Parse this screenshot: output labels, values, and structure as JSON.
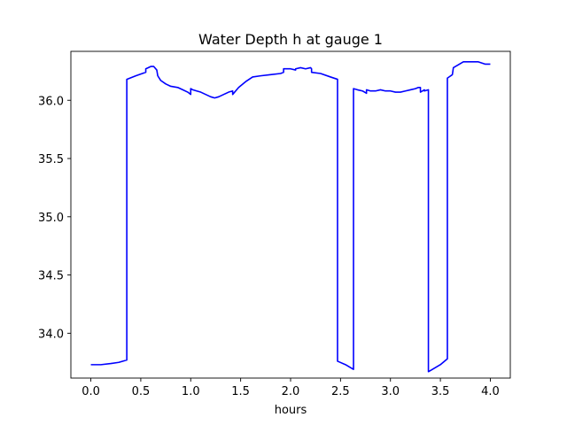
{
  "chart_data": {
    "type": "line",
    "title": "Water Depth h at gauge 1",
    "xlabel": "hours",
    "ylabel": "",
    "xlim": [
      -0.2,
      4.2
    ],
    "ylim": [
      33.615,
      36.42
    ],
    "xticks": [
      0.0,
      0.5,
      1.0,
      1.5,
      2.0,
      2.5,
      3.0,
      3.5,
      4.0
    ],
    "xtick_labels": [
      "0.0",
      "0.5",
      "1.0",
      "1.5",
      "2.0",
      "2.5",
      "3.0",
      "3.5",
      "4.0"
    ],
    "yticks": [
      34.0,
      34.5,
      35.0,
      35.5,
      36.0
    ],
    "ytick_labels": [
      "34.0",
      "34.5",
      "35.0",
      "35.5",
      "36.0"
    ],
    "grid": false,
    "line_color": "#0000ff",
    "series": [
      {
        "x": [
          0.0,
          0.1,
          0.2,
          0.28,
          0.36,
          0.36,
          0.45,
          0.55,
          0.55,
          0.6,
          0.63,
          0.66,
          0.67,
          0.7,
          0.75,
          0.8,
          0.87,
          0.92,
          0.97,
          1.0,
          1.0,
          1.02,
          1.06,
          1.1,
          1.15,
          1.2,
          1.24,
          1.28,
          1.33,
          1.38,
          1.42,
          1.42,
          1.48,
          1.55,
          1.62,
          1.7,
          1.8,
          1.9,
          1.93,
          1.93,
          2.0,
          2.05,
          2.05,
          2.1,
          2.15,
          2.2,
          2.21,
          2.21,
          2.3,
          2.4,
          2.47,
          2.47,
          2.55,
          2.63,
          2.63,
          2.67,
          2.72,
          2.76,
          2.76,
          2.8,
          2.85,
          2.9,
          2.95,
          3.0,
          3.05,
          3.1,
          3.15,
          3.2,
          3.25,
          3.28,
          3.3,
          3.3,
          3.34,
          3.34,
          3.38,
          3.38,
          3.42,
          3.5,
          3.57,
          3.57,
          3.62,
          3.63,
          3.67,
          3.73,
          3.8,
          3.88,
          3.95,
          4.0
        ],
        "y": [
          33.73,
          33.73,
          33.74,
          33.75,
          33.77,
          36.18,
          36.21,
          36.24,
          36.27,
          36.29,
          36.29,
          36.26,
          36.21,
          36.17,
          36.14,
          36.12,
          36.11,
          36.09,
          36.07,
          36.05,
          36.1,
          36.09,
          36.08,
          36.07,
          36.05,
          36.03,
          36.02,
          36.03,
          36.05,
          36.07,
          36.08,
          36.05,
          36.11,
          36.16,
          36.2,
          36.21,
          36.22,
          36.23,
          36.24,
          36.27,
          36.27,
          36.26,
          36.27,
          36.28,
          36.27,
          36.28,
          36.27,
          36.24,
          36.23,
          36.2,
          36.18,
          33.76,
          33.73,
          33.69,
          36.1,
          36.09,
          36.08,
          36.06,
          36.09,
          36.08,
          36.08,
          36.09,
          36.08,
          36.08,
          36.07,
          36.07,
          36.08,
          36.09,
          36.1,
          36.11,
          36.11,
          36.07,
          36.09,
          36.08,
          36.09,
          33.67,
          33.69,
          33.73,
          33.78,
          36.19,
          36.22,
          36.28,
          36.3,
          36.33,
          36.33,
          36.33,
          36.31,
          36.31
        ]
      }
    ]
  }
}
